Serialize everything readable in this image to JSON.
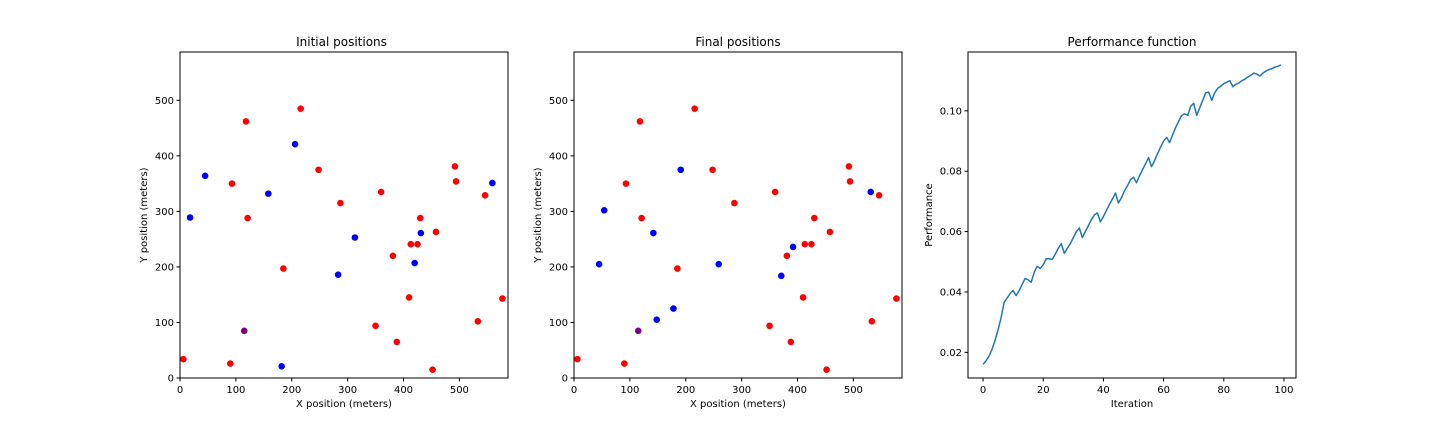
{
  "colors": {
    "red": "#ff0000",
    "blue": "#0000ff",
    "purple": "#800080",
    "line": "#1f77b4"
  },
  "chart_data": [
    {
      "type": "scatter",
      "title": "Initial positions",
      "xlabel": "X position (meters)",
      "ylabel": "Y position (meters)",
      "xlim": [
        0,
        587
      ],
      "ylim": [
        0,
        587
      ],
      "xticks": [
        0,
        100,
        200,
        300,
        400,
        500
      ],
      "yticks": [
        0,
        100,
        200,
        300,
        400,
        500
      ],
      "grid": false,
      "series": [
        {
          "color": "red",
          "points": [
            [
              6,
              34
            ],
            [
              90,
              26
            ],
            [
              93,
              350
            ],
            [
              118,
              462
            ],
            [
              121,
              288
            ],
            [
              185,
              197
            ],
            [
              216,
              485
            ],
            [
              248,
              375
            ],
            [
              287,
              315
            ],
            [
              350,
              94
            ],
            [
              360,
              335
            ],
            [
              381,
              220
            ],
            [
              388,
              65
            ],
            [
              410,
              145
            ],
            [
              413,
              241
            ],
            [
              425,
              241
            ],
            [
              430,
              288
            ],
            [
              452,
              15
            ],
            [
              458,
              263
            ],
            [
              492,
              381
            ],
            [
              494,
              354
            ],
            [
              533,
              102
            ],
            [
              546,
              329
            ],
            [
              577,
              143
            ]
          ]
        },
        {
          "color": "blue",
          "points": [
            [
              18,
              289
            ],
            [
              45,
              364
            ],
            [
              158,
              332
            ],
            [
              182,
              21
            ],
            [
              206,
              421
            ],
            [
              283,
              186
            ],
            [
              313,
              253
            ],
            [
              420,
              207
            ],
            [
              431,
              261
            ],
            [
              559,
              351
            ]
          ]
        },
        {
          "color": "purple",
          "points": [
            [
              115,
              85
            ]
          ]
        }
      ]
    },
    {
      "type": "scatter",
      "title": "Final positions",
      "xlabel": "X position (meters)",
      "ylabel": "Y position (meters)",
      "xlim": [
        0,
        587
      ],
      "ylim": [
        0,
        587
      ],
      "xticks": [
        0,
        100,
        200,
        300,
        400,
        500
      ],
      "yticks": [
        0,
        100,
        200,
        300,
        400,
        500
      ],
      "grid": false,
      "series": [
        {
          "color": "red",
          "points": [
            [
              6,
              34
            ],
            [
              90,
              26
            ],
            [
              93,
              350
            ],
            [
              118,
              462
            ],
            [
              121,
              288
            ],
            [
              185,
              197
            ],
            [
              216,
              485
            ],
            [
              248,
              375
            ],
            [
              287,
              315
            ],
            [
              350,
              94
            ],
            [
              360,
              335
            ],
            [
              381,
              220
            ],
            [
              388,
              65
            ],
            [
              410,
              145
            ],
            [
              413,
              241
            ],
            [
              425,
              241
            ],
            [
              430,
              288
            ],
            [
              452,
              15
            ],
            [
              458,
              263
            ],
            [
              492,
              381
            ],
            [
              494,
              354
            ],
            [
              533,
              102
            ],
            [
              546,
              329
            ],
            [
              577,
              143
            ]
          ]
        },
        {
          "color": "blue",
          "points": [
            [
              45,
              205
            ],
            [
              54,
              302
            ],
            [
              142,
              261
            ],
            [
              148,
              105
            ],
            [
              178,
              125
            ],
            [
              191,
              375
            ],
            [
              259,
              205
            ],
            [
              371,
              184
            ],
            [
              392,
              236
            ],
            [
              531,
              335
            ]
          ]
        },
        {
          "color": "purple",
          "points": [
            [
              115,
              85
            ]
          ]
        }
      ]
    },
    {
      "type": "line",
      "title": "Performance function",
      "xlabel": "Iteration",
      "ylabel": "Performance",
      "xlim": [
        -5,
        104
      ],
      "ylim": [
        0.0115,
        0.1195
      ],
      "xticks": [
        0,
        20,
        40,
        60,
        80,
        100
      ],
      "yticks": [
        0.02,
        0.04,
        0.06,
        0.08,
        0.1
      ],
      "ytick_labels": [
        "0.02",
        "0.04",
        "0.06",
        "0.08",
        "0.10"
      ],
      "grid": false,
      "series": [
        {
          "color": "line",
          "x": [
            0,
            1,
            2,
            3,
            4,
            5,
            6,
            7,
            8,
            9,
            10,
            11,
            12,
            13,
            14,
            15,
            16,
            17,
            18,
            19,
            20,
            21,
            22,
            23,
            24,
            25,
            26,
            27,
            28,
            29,
            30,
            31,
            32,
            33,
            34,
            35,
            36,
            37,
            38,
            39,
            40,
            41,
            42,
            43,
            44,
            45,
            46,
            47,
            48,
            49,
            50,
            51,
            52,
            53,
            54,
            55,
            56,
            57,
            58,
            59,
            60,
            61,
            62,
            63,
            64,
            65,
            66,
            67,
            68,
            69,
            70,
            71,
            72,
            73,
            74,
            75,
            76,
            77,
            78,
            79,
            80,
            81,
            82,
            83,
            84,
            85,
            86,
            87,
            88,
            89,
            90,
            91,
            92,
            93,
            94,
            95,
            96,
            97,
            98,
            99
          ],
          "y": [
            0.016,
            0.0172,
            0.0188,
            0.021,
            0.024,
            0.0275,
            0.0315,
            0.0365,
            0.038,
            0.0395,
            0.0405,
            0.0388,
            0.0405,
            0.0425,
            0.0445,
            0.044,
            0.0432,
            0.0465,
            0.0485,
            0.0478,
            0.049,
            0.051,
            0.051,
            0.0508,
            0.0525,
            0.0545,
            0.056,
            0.0528,
            0.0545,
            0.056,
            0.058,
            0.06,
            0.0612,
            0.058,
            0.06,
            0.062,
            0.064,
            0.0655,
            0.0662,
            0.0632,
            0.065,
            0.067,
            0.069,
            0.0708,
            0.0728,
            0.0695,
            0.0712,
            0.0735,
            0.0752,
            0.0772,
            0.078,
            0.0762,
            0.0785,
            0.0805,
            0.0825,
            0.0845,
            0.0815,
            0.0835,
            0.0858,
            0.088,
            0.09,
            0.0912,
            0.0895,
            0.092,
            0.0945,
            0.0965,
            0.0985,
            0.099,
            0.0985,
            0.1015,
            0.1025,
            0.0985,
            0.101,
            0.1035,
            0.106,
            0.1062,
            0.1035,
            0.106,
            0.1075,
            0.1082,
            0.109,
            0.1095,
            0.11,
            0.108,
            0.1088,
            0.1092,
            0.11,
            0.1105,
            0.1112,
            0.1118,
            0.1125,
            0.1122,
            0.1115,
            0.1125,
            0.1132,
            0.1137,
            0.114,
            0.1145,
            0.1148,
            0.1152
          ]
        }
      ]
    }
  ]
}
